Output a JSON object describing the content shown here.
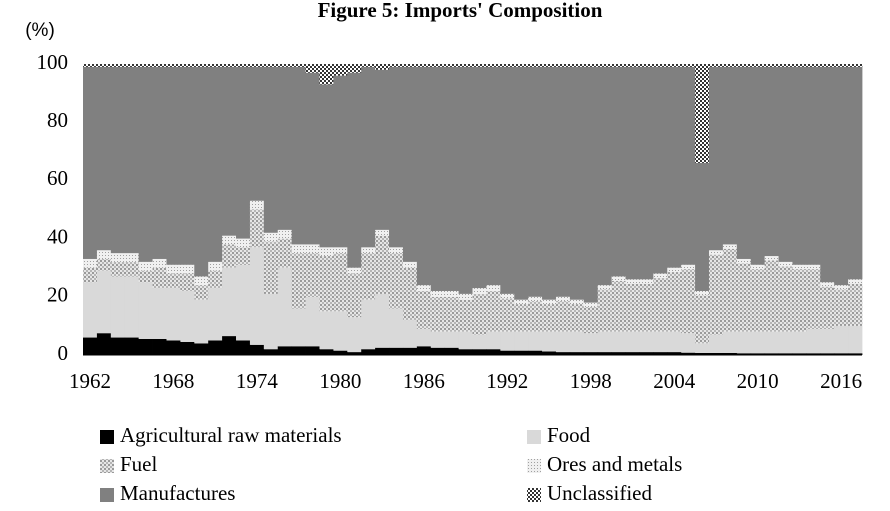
{
  "chart_data": {
    "type": "stacked-bar",
    "title": "Figure 5: Imports' Composition",
    "y_label": "(%)",
    "categories": [
      "1962",
      null,
      null,
      null,
      null,
      null,
      "1968",
      null,
      null,
      null,
      null,
      null,
      "1974",
      null,
      null,
      null,
      null,
      null,
      "1980",
      null,
      null,
      null,
      null,
      null,
      "1986",
      null,
      null,
      null,
      null,
      null,
      "1992",
      null,
      null,
      null,
      null,
      null,
      "1998",
      null,
      null,
      null,
      null,
      null,
      "2004",
      null,
      null,
      null,
      null,
      null,
      "2010",
      null,
      null,
      null,
      null,
      null,
      "2016",
      null
    ],
    "ylim": [
      0,
      100
    ],
    "yticks": [
      0,
      20,
      40,
      60,
      80,
      100
    ],
    "series": [
      {
        "name": "Agricultural raw materials",
        "color": "#000000",
        "pattern": "solid",
        "values": [
          6,
          7.5,
          6,
          6,
          5.5,
          5.5,
          5,
          4.5,
          4,
          5,
          6.5,
          5,
          3.5,
          2,
          3,
          3,
          3,
          2,
          1.5,
          1,
          2,
          2.5,
          2.5,
          2.5,
          3,
          2.5,
          2.5,
          2,
          2,
          2,
          1.5,
          1.5,
          1.5,
          1.2,
          1,
          1,
          1,
          1,
          1,
          1,
          1,
          1,
          1,
          0.8,
          0.7,
          0.7,
          0.7,
          0.6,
          0.6,
          0.6,
          0.6,
          0.6,
          0.6,
          0.6,
          0.6,
          0.6
        ]
      },
      {
        "name": "Food",
        "color": "#d9d9d9",
        "pattern": "solid",
        "values": [
          19,
          21.5,
          21,
          21,
          19.5,
          17.5,
          18,
          17.5,
          15,
          18,
          23.5,
          26,
          33.5,
          19,
          27,
          13,
          17,
          13,
          13.5,
          12,
          17,
          18.5,
          13.5,
          9.5,
          6,
          5.5,
          5.5,
          6,
          5,
          6,
          6.5,
          6.5,
          6.5,
          6.8,
          7,
          7,
          6.5,
          7,
          7,
          7,
          7,
          7,
          7,
          6.7,
          3.3,
          6.3,
          7.3,
          7.4,
          7.4,
          7.4,
          7.4,
          7.4,
          8.4,
          8.4,
          9.4,
          9.4
        ]
      },
      {
        "name": "Fuel",
        "color": "#bfbfbf",
        "pattern": "dots",
        "values": [
          5,
          4,
          5,
          5,
          4,
          7,
          5,
          6,
          5,
          6,
          8,
          6,
          13,
          18,
          10,
          19,
          15,
          19,
          20,
          15,
          16,
          20,
          19,
          18,
          13,
          12,
          12,
          11,
          14,
          14,
          11.5,
          9.5,
          10.5,
          9.5,
          10.5,
          9.5,
          9,
          14.5,
          17.5,
          16.5,
          16.5,
          18.5,
          20.5,
          22,
          16.5,
          27.5,
          28.5,
          23.5,
          21.5,
          24.5,
          22.5,
          21.5,
          20.5,
          14.5,
          12.5,
          14.5
        ]
      },
      {
        "name": "Ores and metals",
        "color": "#e0e0e0",
        "pattern": "fine-dots",
        "values": [
          3,
          3,
          3,
          3,
          3,
          3,
          3,
          3,
          3,
          3,
          3,
          3,
          3,
          3,
          3,
          3,
          3,
          3,
          2,
          2,
          2,
          2,
          2,
          2,
          2,
          2,
          2,
          2,
          2,
          2,
          1.5,
          1.5,
          1.5,
          1.5,
          1.5,
          1.5,
          1.5,
          1.5,
          1.5,
          1.5,
          1.5,
          1.5,
          1.5,
          1.5,
          1.5,
          1.5,
          1.5,
          1.5,
          1.5,
          1.5,
          1.5,
          1.5,
          1.5,
          1.5,
          1.5,
          1.5
        ]
      },
      {
        "name": "Manufactures",
        "color": "#808080",
        "pattern": "solid",
        "values": [
          66,
          63,
          64,
          64,
          67,
          66,
          68,
          68,
          72,
          67,
          58,
          59,
          46,
          57,
          56,
          61,
          59,
          56,
          59,
          67,
          62,
          55,
          62,
          67,
          75,
          77,
          77,
          78,
          76,
          75,
          78,
          80,
          79,
          80,
          79,
          80,
          81,
          75,
          72,
          73,
          73,
          71,
          69,
          68,
          44,
          63,
          61,
          66,
          68,
          65,
          67,
          68,
          68,
          74,
          75,
          73
        ]
      },
      {
        "name": "Unclassified",
        "color": "#595959",
        "pattern": "crosshatch",
        "values": [
          1,
          1,
          1,
          1,
          1,
          1,
          1,
          1,
          1,
          1,
          1,
          1,
          1,
          1,
          1,
          1,
          3,
          7,
          4,
          3,
          1,
          2,
          1,
          1,
          1,
          1,
          1,
          1,
          1,
          1,
          1,
          1,
          1,
          1,
          1,
          1,
          1,
          1,
          1,
          1,
          1,
          1,
          1,
          1,
          34,
          1,
          1,
          1,
          1,
          1,
          1,
          1,
          1,
          1,
          1,
          1
        ]
      }
    ]
  }
}
